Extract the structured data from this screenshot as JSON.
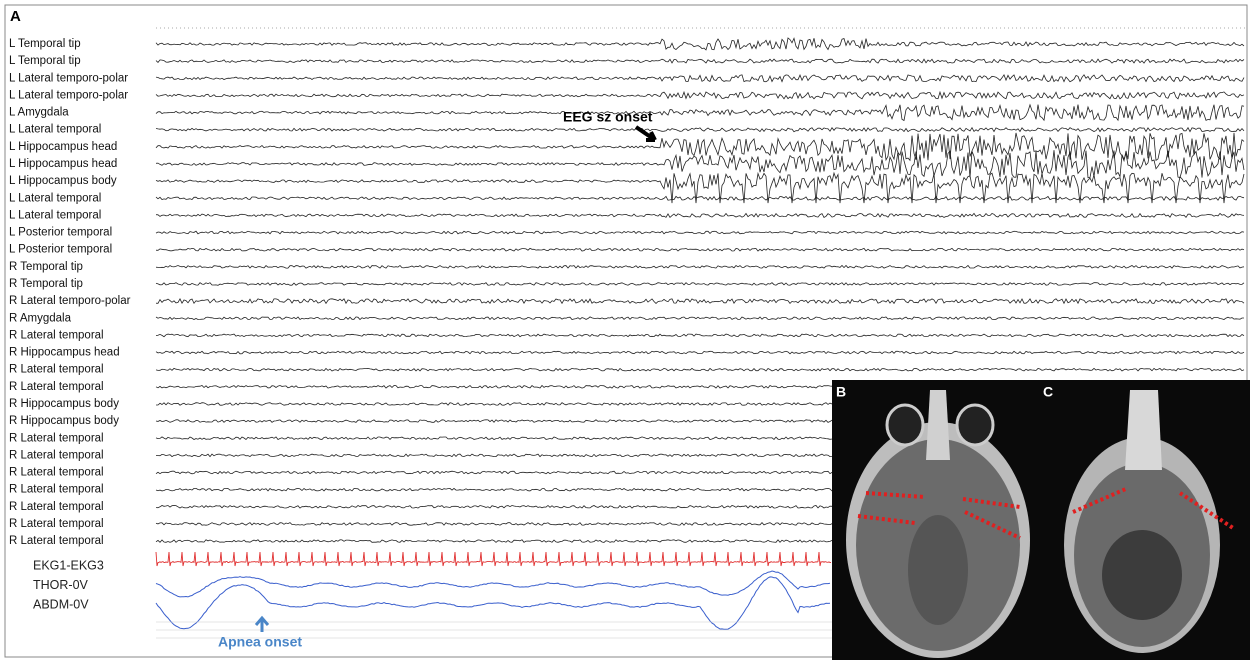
{
  "panels": {
    "a": {
      "label": "A",
      "channels": [
        "L Temporal tip",
        "L Temporal tip",
        "L Lateral temporo-polar",
        "L Lateral temporo-polar",
        "L Amygdala",
        "L Lateral temporal",
        "L Hippocampus head",
        "L Hippocampus head",
        "L Hippocampus body",
        "L Lateral temporal",
        "L Lateral temporal",
        "L Posterior temporal",
        "L Posterior temporal",
        "R Temporal tip",
        "R Temporal tip",
        "R Lateral temporo-polar",
        "R Amygdala",
        "R Lateral temporal",
        "R Hippocampus head",
        "R Lateral temporal",
        "R Lateral temporal",
        "R Hippocampus body",
        "R Hippocampus body",
        "R Lateral temporal",
        "R Lateral temporal",
        "R Lateral temporal",
        "R Lateral temporal",
        "R Lateral temporal",
        "R Lateral temporal",
        "R Lateral temporal"
      ],
      "physio": [
        "EKG1-EKG3",
        "THOR-0V",
        "ABDM-0V"
      ],
      "annotations": {
        "seizure_onset": "EEG sz onset",
        "apnea_onset": "Apnea onset"
      }
    },
    "b": {
      "label": "B"
    },
    "c": {
      "label": "C"
    }
  }
}
